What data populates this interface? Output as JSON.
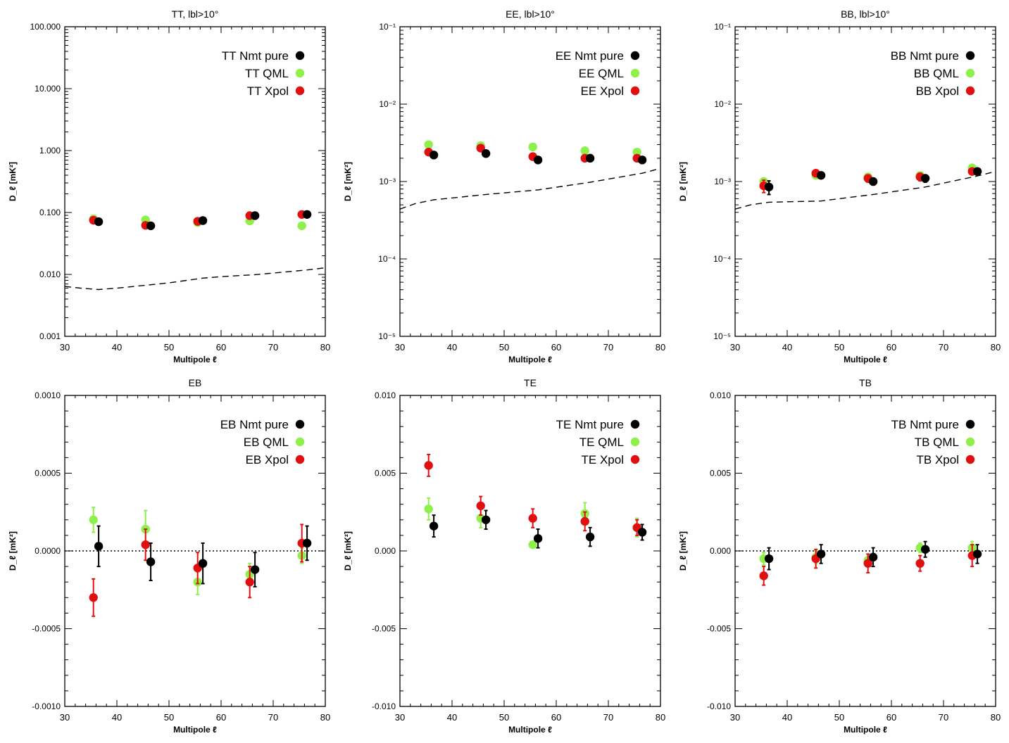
{
  "colors": {
    "nmt": "#000000",
    "qml": "#8ef04a",
    "xpol": "#e01010",
    "axis": "#000000"
  },
  "chart_data": [
    {
      "type": "scatter",
      "scale": "log",
      "title": "TT, lbl>10°",
      "xlabel": "Multipole ℓ",
      "ylabel": "D_ℓ [mK²]",
      "xlim": [
        30,
        80
      ],
      "ylim": [
        0.001,
        100
      ],
      "xticks": [
        "30",
        "40",
        "50",
        "60",
        "70",
        "80"
      ],
      "yticks": [
        {
          "v": 0.001,
          "label": "0.001"
        },
        {
          "v": 0.01,
          "label": "0.010"
        },
        {
          "v": 0.1,
          "label": "0.100"
        },
        {
          "v": 1,
          "label": "1.000"
        },
        {
          "v": 10,
          "label": "10.000"
        },
        {
          "v": 100,
          "label": "100.000"
        }
      ],
      "reference_line": {
        "style": "dashed",
        "x": [
          30,
          33,
          36.5,
          40,
          46.5,
          50,
          56.5,
          60,
          66.5,
          70,
          76.5,
          80
        ],
        "y": [
          0.0064,
          0.006,
          0.0057,
          0.006,
          0.0068,
          0.0073,
          0.0087,
          0.0092,
          0.0099,
          0.0105,
          0.0118,
          0.0128
        ]
      },
      "series": [
        {
          "name": "TT Nmt pure",
          "color_key": "nmt",
          "x": [
            36.5,
            46.5,
            56.5,
            66.5,
            76.5
          ],
          "y": [
            0.071,
            0.061,
            0.074,
            0.089,
            0.093
          ]
        },
        {
          "name": "TT QML",
          "color_key": "qml",
          "x": [
            35.5,
            45.5,
            55.5,
            65.5,
            75.5
          ],
          "y": [
            0.079,
            0.076,
            0.069,
            0.073,
            0.061
          ]
        },
        {
          "name": "TT Xpol",
          "color_key": "xpol",
          "x": [
            35.5,
            45.5,
            55.5,
            65.5,
            75.5
          ],
          "y": [
            0.075,
            0.062,
            0.072,
            0.089,
            0.093
          ]
        }
      ]
    },
    {
      "type": "scatter",
      "scale": "log",
      "title": "EE, lbl>10°",
      "xlabel": "Multipole ℓ",
      "ylabel": "D_ℓ [mK²]",
      "xlim": [
        30,
        80
      ],
      "ylim": [
        1e-05,
        0.1
      ],
      "xticks": [
        "30",
        "40",
        "50",
        "60",
        "70",
        "80"
      ],
      "yticks": [
        {
          "v": 1e-05,
          "label": "10⁻⁵"
        },
        {
          "v": 0.0001,
          "label": "10⁻⁴"
        },
        {
          "v": 0.001,
          "label": "10⁻³"
        },
        {
          "v": 0.01,
          "label": "10⁻²"
        },
        {
          "v": 0.1,
          "label": "10⁻¹"
        }
      ],
      "reference_line": {
        "style": "dashed",
        "x": [
          30,
          33,
          36.5,
          46.5,
          56.5,
          66.5,
          76.5,
          80
        ],
        "y": [
          0.00044,
          0.00052,
          0.00058,
          0.00068,
          0.00078,
          0.00098,
          0.00128,
          0.00148
        ]
      },
      "series": [
        {
          "name": "EE Nmt pure",
          "color_key": "nmt",
          "x": [
            36.5,
            46.5,
            56.5,
            66.5,
            76.5
          ],
          "y": [
            0.0022,
            0.0023,
            0.0019,
            0.002,
            0.0019
          ]
        },
        {
          "name": "EE QML",
          "color_key": "qml",
          "x": [
            35.5,
            45.5,
            55.5,
            65.5,
            75.5
          ],
          "y": [
            0.003,
            0.0029,
            0.0028,
            0.0025,
            0.0024
          ]
        },
        {
          "name": "EE Xpol",
          "color_key": "xpol",
          "x": [
            35.5,
            45.5,
            55.5,
            65.5,
            75.5
          ],
          "y": [
            0.0024,
            0.0027,
            0.0021,
            0.002,
            0.002
          ]
        }
      ]
    },
    {
      "type": "scatter",
      "scale": "log",
      "title": "BB, lbl>10°",
      "xlabel": "Multipole ℓ",
      "ylabel": "D_ℓ [mK²]",
      "xlim": [
        30,
        80
      ],
      "ylim": [
        1e-05,
        0.1
      ],
      "xticks": [
        "30",
        "40",
        "50",
        "60",
        "70",
        "80"
      ],
      "yticks": [
        {
          "v": 1e-05,
          "label": "10⁻⁵"
        },
        {
          "v": 0.0001,
          "label": "10⁻⁴"
        },
        {
          "v": 0.001,
          "label": "10⁻³"
        },
        {
          "v": 0.01,
          "label": "10⁻²"
        },
        {
          "v": 0.1,
          "label": "10⁻¹"
        }
      ],
      "reference_line": {
        "style": "dashed",
        "x": [
          30,
          33,
          36.5,
          46.5,
          56.5,
          66.5,
          76.5,
          80
        ],
        "y": [
          0.00044,
          0.0005,
          0.00054,
          0.00056,
          0.00068,
          0.00085,
          0.00118,
          0.00135
        ]
      },
      "series": [
        {
          "name": "BB Nmt pure",
          "color_key": "nmt",
          "x": [
            36.5,
            46.5,
            56.5,
            66.5,
            76.5
          ],
          "y": [
            0.00085,
            0.0012,
            0.001,
            0.0011,
            0.00135
          ],
          "err_lo": [
            0.00068,
            0.00112,
            0.0009,
            0.00098,
            0.00125
          ],
          "err_hi": [
            0.00102,
            0.00128,
            0.0011,
            0.00122,
            0.00145
          ]
        },
        {
          "name": "BB QML",
          "color_key": "qml",
          "x": [
            35.5,
            45.5,
            55.5,
            65.5,
            75.5
          ],
          "y": [
            0.001,
            0.0012,
            0.00115,
            0.0012,
            0.0015
          ]
        },
        {
          "name": "BB Xpol",
          "color_key": "xpol",
          "x": [
            35.5,
            45.5,
            55.5,
            65.5,
            75.5
          ],
          "y": [
            0.00088,
            0.00128,
            0.0011,
            0.00115,
            0.00135
          ],
          "err_lo": [
            0.00072,
            0.0012,
            0.00098,
            0.00102,
            0.00125
          ],
          "err_hi": [
            0.00104,
            0.00136,
            0.00122,
            0.00128,
            0.00145
          ]
        }
      ]
    },
    {
      "type": "scatter",
      "scale": "linear",
      "title": "EB",
      "xlabel": "Multipole ℓ",
      "ylabel": "D_ℓ [mK²]",
      "xlim": [
        30,
        80
      ],
      "ylim": [
        -0.001,
        0.001
      ],
      "zero_line": true,
      "xticks": [
        "30",
        "40",
        "50",
        "60",
        "70",
        "80"
      ],
      "yticks": [
        {
          "v": -0.001,
          "label": "-0.0010"
        },
        {
          "v": -0.0005,
          "label": "-0.0005"
        },
        {
          "v": 0,
          "label": "0.0000"
        },
        {
          "v": 0.0005,
          "label": "0.0005"
        },
        {
          "v": 0.001,
          "label": "0.0010"
        }
      ],
      "series": [
        {
          "name": "EB Nmt pure",
          "color_key": "nmt",
          "x": [
            36.5,
            46.5,
            56.5,
            66.5,
            76.5
          ],
          "y": [
            3e-05,
            -7e-05,
            -8e-05,
            -0.00012,
            5e-05
          ],
          "err": [
            0.00013,
            0.00012,
            0.00013,
            0.00011,
            0.00011
          ]
        },
        {
          "name": "EB QML",
          "color_key": "qml",
          "x": [
            35.5,
            45.5,
            55.5,
            65.5,
            75.5
          ],
          "y": [
            0.0002,
            0.00014,
            -0.0002,
            -0.00015,
            -3e-05
          ],
          "err": [
            8e-05,
            0.00012,
            8e-05,
            7e-05,
            5e-05
          ]
        },
        {
          "name": "EB Xpol",
          "color_key": "xpol",
          "x": [
            35.5,
            45.5,
            55.5,
            65.5,
            75.5
          ],
          "y": [
            -0.0003,
            4e-05,
            -0.00011,
            -0.0002,
            5e-05
          ],
          "err": [
            0.00012,
            0.0001,
            0.0001,
            0.0001,
            0.00012
          ]
        }
      ]
    },
    {
      "type": "scatter",
      "scale": "linear",
      "title": "TE",
      "xlabel": "Multipole ℓ",
      "ylabel": "D_ℓ [mK²]",
      "xlim": [
        30,
        80
      ],
      "ylim": [
        -0.01,
        0.01
      ],
      "zero_line": false,
      "xticks": [
        "30",
        "40",
        "50",
        "60",
        "70",
        "80"
      ],
      "yticks": [
        {
          "v": -0.01,
          "label": "-0.010"
        },
        {
          "v": -0.005,
          "label": "-0.005"
        },
        {
          "v": 0,
          "label": "0.000"
        },
        {
          "v": 0.005,
          "label": "0.005"
        },
        {
          "v": 0.01,
          "label": "0.010"
        }
      ],
      "series": [
        {
          "name": "TE Nmt pure",
          "color_key": "nmt",
          "x": [
            36.5,
            46.5,
            56.5,
            66.5,
            76.5
          ],
          "y": [
            0.0016,
            0.002,
            0.0008,
            0.0009,
            0.0012
          ],
          "err": [
            0.0007,
            0.0006,
            0.0006,
            0.0006,
            0.0005
          ]
        },
        {
          "name": "TE QML",
          "color_key": "qml",
          "x": [
            35.5,
            45.5,
            55.5,
            65.5,
            75.5
          ],
          "y": [
            0.0027,
            0.0021,
            0.0004,
            0.0024,
            0.0015
          ],
          "err": [
            0.0007,
            0.0006,
            0.0002,
            0.0007,
            0.0006
          ]
        },
        {
          "name": "TE Xpol",
          "color_key": "xpol",
          "x": [
            35.5,
            45.5,
            55.5,
            65.5,
            75.5
          ],
          "y": [
            0.0055,
            0.0029,
            0.0021,
            0.0019,
            0.0015
          ],
          "err": [
            0.0007,
            0.0006,
            0.0006,
            0.0006,
            0.0005
          ]
        }
      ]
    },
    {
      "type": "scatter",
      "scale": "linear",
      "title": "TB",
      "xlabel": "Multipole ℓ",
      "ylabel": "D_ℓ [mK²]",
      "xlim": [
        30,
        80
      ],
      "ylim": [
        -0.01,
        0.01
      ],
      "zero_line": true,
      "xticks": [
        "30",
        "40",
        "50",
        "60",
        "70",
        "80"
      ],
      "yticks": [
        {
          "v": -0.01,
          "label": "-0.010"
        },
        {
          "v": -0.005,
          "label": "-0.005"
        },
        {
          "v": 0,
          "label": "0.000"
        },
        {
          "v": 0.005,
          "label": "0.005"
        },
        {
          "v": 0.01,
          "label": "0.010"
        }
      ],
      "series": [
        {
          "name": "TB Nmt pure",
          "color_key": "nmt",
          "x": [
            36.5,
            46.5,
            56.5,
            66.5,
            76.5
          ],
          "y": [
            -0.0005,
            -0.0002,
            -0.0004,
            0.0001,
            -0.0002
          ],
          "err": [
            0.0007,
            0.0006,
            0.0006,
            0.0005,
            0.0006
          ]
        },
        {
          "name": "TB QML",
          "color_key": "qml",
          "x": [
            35.5,
            45.5,
            55.5,
            65.5,
            75.5
          ],
          "y": [
            -0.0005,
            -0.0004,
            -0.0006,
            0.0002,
            0.0002
          ],
          "err": [
            0.0004,
            0.0004,
            0.0004,
            0.0003,
            0.0004
          ]
        },
        {
          "name": "TB Xpol",
          "color_key": "xpol",
          "x": [
            35.5,
            45.5,
            55.5,
            65.5,
            75.5
          ],
          "y": [
            -0.0016,
            -0.0005,
            -0.0008,
            -0.0008,
            -0.0003
          ],
          "err": [
            0.0006,
            0.0006,
            0.0006,
            0.0005,
            0.0007
          ]
        }
      ]
    }
  ]
}
